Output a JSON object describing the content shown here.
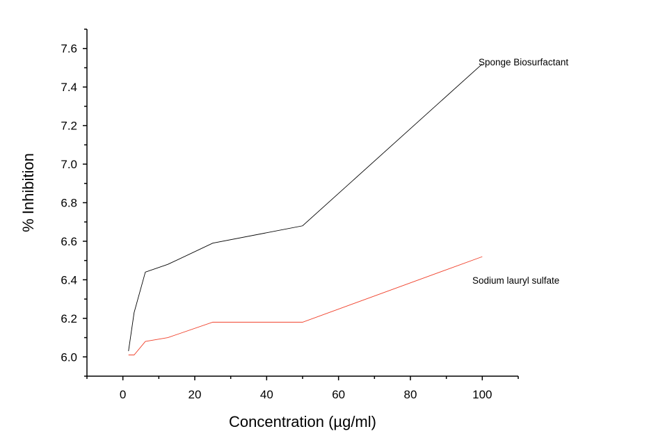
{
  "chart_data": {
    "type": "line",
    "title": "",
    "xlabel": "Concentration (µg/ml)",
    "ylabel": "% Inhibition",
    "xlim": [
      -10,
      110
    ],
    "ylim": [
      5.9,
      7.7
    ],
    "xticks": [
      0,
      20,
      40,
      60,
      80,
      100
    ],
    "yticks": [
      6.0,
      6.2,
      6.4,
      6.6,
      6.8,
      7.0,
      7.2,
      7.4,
      7.6
    ],
    "grid": false,
    "series": [
      {
        "name": "Sponge Biosurfactant",
        "color": "#000000",
        "x": [
          1.56,
          3.125,
          6.25,
          12.5,
          25,
          50,
          100
        ],
        "y": [
          6.03,
          6.23,
          6.44,
          6.48,
          6.59,
          6.68,
          7.52
        ]
      },
      {
        "name": "Sodium lauryl sulfate",
        "color": "#f0402a",
        "x": [
          1.56,
          3.125,
          6.25,
          12.5,
          25,
          50,
          100
        ],
        "y": [
          6.01,
          6.01,
          6.08,
          6.1,
          6.18,
          6.18,
          6.52
        ]
      }
    ]
  }
}
